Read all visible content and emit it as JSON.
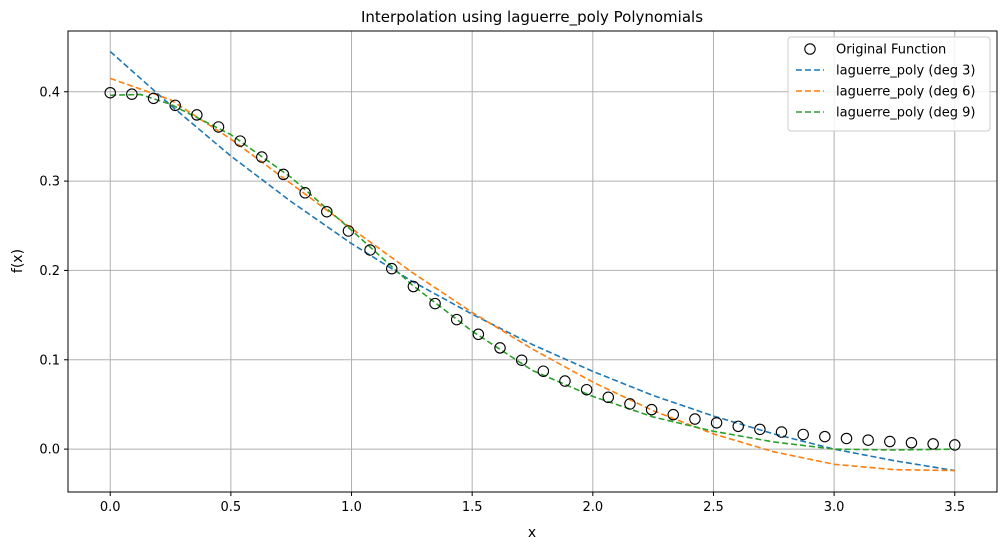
{
  "chart_data": {
    "type": "line",
    "title": "Interpolation using laguerre_poly Polynomials",
    "xlabel": "x",
    "ylabel": "f(x)",
    "xlim": [
      -0.175,
      3.675
    ],
    "ylim": [
      -0.048,
      0.468
    ],
    "xticks": [
      0.0,
      0.5,
      1.0,
      1.5,
      2.0,
      2.5,
      3.0,
      3.5
    ],
    "xtick_labels": [
      "0.0",
      "0.5",
      "1.0",
      "1.5",
      "2.0",
      "2.5",
      "3.0",
      "3.5"
    ],
    "yticks": [
      0.0,
      0.1,
      0.2,
      0.3,
      0.4
    ],
    "ytick_labels": [
      "0.0",
      "0.1",
      "0.2",
      "0.3",
      "0.4"
    ],
    "grid": true,
    "legend_position": "top-right",
    "series": [
      {
        "name": "Original Function",
        "kind": "scatter",
        "marker": "open-circle",
        "color": "#000000",
        "x": [
          0.0,
          0.0897,
          0.1795,
          0.2692,
          0.359,
          0.4487,
          0.5385,
          0.6282,
          0.7179,
          0.8077,
          0.8974,
          0.9872,
          1.0769,
          1.1667,
          1.2564,
          1.3462,
          1.4359,
          1.5256,
          1.6154,
          1.7051,
          1.7949,
          1.8846,
          1.9744,
          2.0641,
          2.1538,
          2.2436,
          2.3333,
          2.4231,
          2.5128,
          2.6026,
          2.6923,
          2.7821,
          2.8718,
          2.9615,
          3.0513,
          3.141,
          3.2308,
          3.3205,
          3.4103,
          3.5
        ],
        "y": [
          0.3989,
          0.3973,
          0.3926,
          0.3848,
          0.3741,
          0.3606,
          0.3448,
          0.3269,
          0.3075,
          0.2869,
          0.2657,
          0.2442,
          0.2229,
          0.202,
          0.182,
          0.1629,
          0.145,
          0.1285,
          0.1133,
          0.0995,
          0.0872,
          0.0762,
          0.0665,
          0.058,
          0.0506,
          0.0442,
          0.0386,
          0.0337,
          0.0294,
          0.0255,
          0.0221,
          0.0191,
          0.0164,
          0.014,
          0.0119,
          0.0101,
          0.0085,
          0.0071,
          0.0058,
          0.0047
        ]
      },
      {
        "name": "laguerre_poly (deg 3)",
        "kind": "line",
        "dash": true,
        "color": "#1f77b4",
        "x": [
          0.0,
          0.25,
          0.5,
          0.75,
          1.0,
          1.25,
          1.5,
          1.75,
          2.0,
          2.25,
          2.5,
          2.75,
          3.0,
          3.25,
          3.5
        ],
        "y": [
          0.445,
          0.385,
          0.328,
          0.277,
          0.23,
          0.188,
          0.151,
          0.117,
          0.087,
          0.06,
          0.037,
          0.017,
          0.0,
          -0.013,
          -0.024
        ]
      },
      {
        "name": "laguerre_poly (deg 6)",
        "kind": "line",
        "dash": true,
        "color": "#ff7f0e",
        "x": [
          0.0,
          0.25,
          0.5,
          0.75,
          1.0,
          1.25,
          1.5,
          1.75,
          2.0,
          2.25,
          2.5,
          2.75,
          3.0,
          3.25,
          3.5
        ],
        "y": [
          0.415,
          0.391,
          0.347,
          0.297,
          0.247,
          0.198,
          0.153,
          0.112,
          0.075,
          0.043,
          0.017,
          -0.003,
          -0.017,
          -0.023,
          -0.024
        ]
      },
      {
        "name": "laguerre_poly (deg 9)",
        "kind": "line",
        "dash": true,
        "color": "#2ca02c",
        "x": [
          0.0,
          0.125,
          0.25,
          0.5,
          0.75,
          1.0,
          1.25,
          1.5,
          1.75,
          2.0,
          2.25,
          2.5,
          2.75,
          3.0,
          3.25,
          3.5
        ],
        "y": [
          0.396,
          0.397,
          0.386,
          0.352,
          0.304,
          0.245,
          0.184,
          0.132,
          0.088,
          0.059,
          0.036,
          0.02,
          0.008,
          0.0,
          -0.001,
          0.0
        ]
      }
    ]
  }
}
